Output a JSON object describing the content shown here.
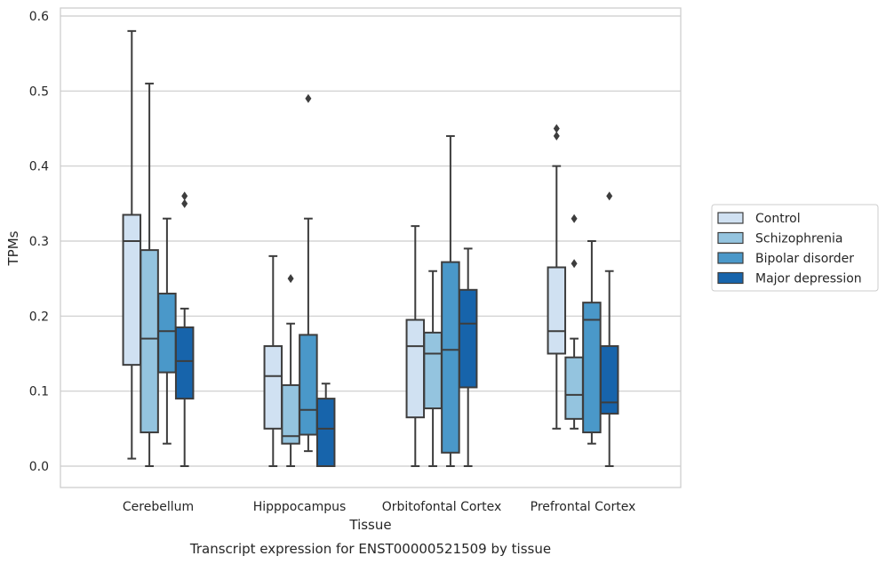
{
  "chart_data": {
    "type": "box",
    "title": "",
    "caption": "Transcript expression for ENST00000521509 by tissue",
    "xlabel": "Tissue",
    "ylabel": "TPMs",
    "ylim": [
      -0.028,
      0.612
    ],
    "yticks": [
      0.0,
      0.1,
      0.2,
      0.3,
      0.4,
      0.5,
      0.6
    ],
    "ytick_labels": [
      "0.0",
      "0.1",
      "0.2",
      "0.3",
      "0.4",
      "0.5",
      "0.6"
    ],
    "grid": "horizontal",
    "legend_position": "right",
    "categories": [
      "Cerebellum",
      "Hipppocampus",
      "Orbitofontal Cortex",
      "Prefrontal Cortex"
    ],
    "series": [
      {
        "name": "Control",
        "color": "#d0e1f2",
        "boxes": [
          {
            "whisker_low": 0.01,
            "q1": 0.135,
            "median": 0.3,
            "q3": 0.335,
            "whisker_high": 0.58,
            "outliers": []
          },
          {
            "whisker_low": 0.0,
            "q1": 0.05,
            "median": 0.12,
            "q3": 0.16,
            "whisker_high": 0.28,
            "outliers": []
          },
          {
            "whisker_low": 0.0,
            "q1": 0.065,
            "median": 0.16,
            "q3": 0.195,
            "whisker_high": 0.32,
            "outliers": []
          },
          {
            "whisker_low": 0.05,
            "q1": 0.15,
            "median": 0.18,
            "q3": 0.265,
            "whisker_high": 0.4,
            "outliers": [
              0.44,
              0.45
            ]
          }
        ]
      },
      {
        "name": "Schizophrenia",
        "color": "#94c4df",
        "boxes": [
          {
            "whisker_low": 0.0,
            "q1": 0.045,
            "median": 0.17,
            "q3": 0.288,
            "whisker_high": 0.51,
            "outliers": []
          },
          {
            "whisker_low": 0.0,
            "q1": 0.03,
            "median": 0.04,
            "q3": 0.108,
            "whisker_high": 0.19,
            "outliers": [
              0.25
            ]
          },
          {
            "whisker_low": 0.0,
            "q1": 0.077,
            "median": 0.15,
            "q3": 0.178,
            "whisker_high": 0.26,
            "outliers": []
          },
          {
            "whisker_low": 0.05,
            "q1": 0.063,
            "median": 0.095,
            "q3": 0.145,
            "whisker_high": 0.17,
            "outliers": [
              0.27,
              0.33
            ]
          }
        ]
      },
      {
        "name": "Bipolar disorder",
        "color": "#4a98c9",
        "boxes": [
          {
            "whisker_low": 0.03,
            "q1": 0.125,
            "median": 0.18,
            "q3": 0.23,
            "whisker_high": 0.33,
            "outliers": []
          },
          {
            "whisker_low": 0.02,
            "q1": 0.042,
            "median": 0.075,
            "q3": 0.175,
            "whisker_high": 0.33,
            "outliers": [
              0.49
            ]
          },
          {
            "whisker_low": 0.0,
            "q1": 0.018,
            "median": 0.155,
            "q3": 0.272,
            "whisker_high": 0.44,
            "outliers": []
          },
          {
            "whisker_low": 0.03,
            "q1": 0.045,
            "median": 0.195,
            "q3": 0.218,
            "whisker_high": 0.3,
            "outliers": []
          }
        ]
      },
      {
        "name": "Major depression",
        "color": "#1764ab",
        "boxes": [
          {
            "whisker_low": 0.0,
            "q1": 0.09,
            "median": 0.14,
            "q3": 0.185,
            "whisker_high": 0.21,
            "outliers": [
              0.35,
              0.36
            ]
          },
          {
            "whisker_low": 0.0,
            "q1": 0.0,
            "median": 0.05,
            "q3": 0.09,
            "whisker_high": 0.11,
            "outliers": []
          },
          {
            "whisker_low": 0.0,
            "q1": 0.105,
            "median": 0.19,
            "q3": 0.235,
            "whisker_high": 0.29,
            "outliers": []
          },
          {
            "whisker_low": 0.0,
            "q1": 0.07,
            "median": 0.085,
            "q3": 0.16,
            "whisker_high": 0.26,
            "outliers": [
              0.36
            ]
          }
        ]
      }
    ],
    "colors": {
      "edge": "#3d3d3d",
      "grid": "#cccccc",
      "frame": "#cccccc",
      "text": "#262626"
    }
  }
}
